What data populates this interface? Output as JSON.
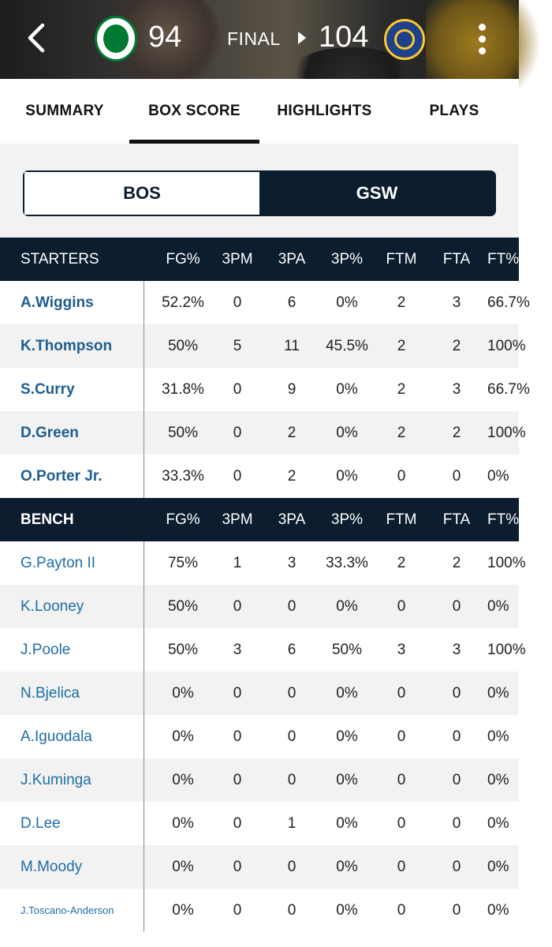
{
  "header": {
    "away_score": "94",
    "home_score": "104",
    "status": "FINAL"
  },
  "tabs": [
    {
      "label": "SUMMARY"
    },
    {
      "label": "BOX SCORE"
    },
    {
      "label": "HIGHLIGHTS"
    },
    {
      "label": "PLAYS"
    }
  ],
  "team_toggle": {
    "away": "BOS",
    "home": "GSW",
    "selected": "GSW"
  },
  "columns": [
    "FG%",
    "3PM",
    "3PA",
    "3P%",
    "FTM",
    "FTA",
    "FT%"
  ],
  "starters": {
    "label": "STARTERS",
    "rows": [
      {
        "name": "A.Wiggins",
        "stats": [
          "52.2%",
          "0",
          "6",
          "0%",
          "2",
          "3",
          "66.7%"
        ]
      },
      {
        "name": "K.Thompson",
        "stats": [
          "50%",
          "5",
          "11",
          "45.5%",
          "2",
          "2",
          "100%"
        ]
      },
      {
        "name": "S.Curry",
        "stats": [
          "31.8%",
          "0",
          "9",
          "0%",
          "2",
          "3",
          "66.7%"
        ]
      },
      {
        "name": "D.Green",
        "stats": [
          "50%",
          "0",
          "2",
          "0%",
          "2",
          "2",
          "100%"
        ]
      },
      {
        "name": "O.Porter Jr.",
        "stats": [
          "33.3%",
          "0",
          "2",
          "0%",
          "0",
          "0",
          "0%"
        ]
      }
    ]
  },
  "bench": {
    "label": "BENCH",
    "rows": [
      {
        "name": "G.Payton II",
        "stats": [
          "75%",
          "1",
          "3",
          "33.3%",
          "2",
          "2",
          "100%"
        ]
      },
      {
        "name": "K.Looney",
        "stats": [
          "50%",
          "0",
          "0",
          "0%",
          "0",
          "0",
          "0%"
        ]
      },
      {
        "name": "J.Poole",
        "stats": [
          "50%",
          "3",
          "6",
          "50%",
          "3",
          "3",
          "100%"
        ]
      },
      {
        "name": "N.Bjelica",
        "stats": [
          "0%",
          "0",
          "0",
          "0%",
          "0",
          "0",
          "0%"
        ]
      },
      {
        "name": "A.Iguodala",
        "stats": [
          "0%",
          "0",
          "0",
          "0%",
          "0",
          "0",
          "0%"
        ]
      },
      {
        "name": "J.Kuminga",
        "stats": [
          "0%",
          "0",
          "0",
          "0%",
          "0",
          "0",
          "0%"
        ]
      },
      {
        "name": "D.Lee",
        "stats": [
          "0%",
          "0",
          "1",
          "0%",
          "0",
          "0",
          "0%"
        ]
      },
      {
        "name": "M.Moody",
        "stats": [
          "0%",
          "0",
          "0",
          "0%",
          "0",
          "0",
          "0%"
        ]
      },
      {
        "name": "J.Toscano-Anderson",
        "stats": [
          "0%",
          "0",
          "0",
          "0%",
          "0",
          "0",
          "0%"
        ]
      }
    ]
  },
  "colors": {
    "navy": "#0b1d2e",
    "link": "#1d5e93",
    "celtics_green": "#007a33",
    "warriors_blue": "#1d428a",
    "warriors_gold": "#ffc72c"
  },
  "icons": {
    "back": "chevron-left-icon",
    "menu": "more-vertical-icon"
  }
}
